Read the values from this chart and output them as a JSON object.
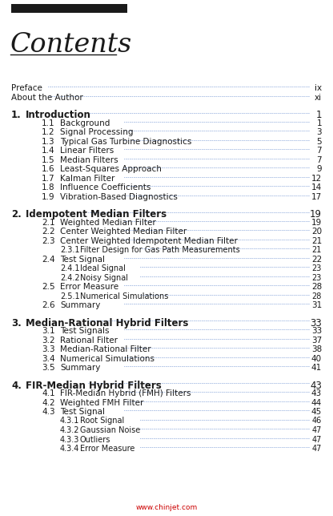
{
  "title": "Contents",
  "background_color": "#ffffff",
  "entries": [
    {
      "level": 0,
      "num": "Preface",
      "title": "",
      "page": "ix"
    },
    {
      "level": 0,
      "num": "About the Author",
      "title": "",
      "page": "xi"
    },
    {
      "level": -1,
      "num": "",
      "title": "",
      "page": ""
    },
    {
      "level": 1,
      "num": "1.",
      "title": "Introduction",
      "page": "1"
    },
    {
      "level": 2,
      "num": "1.1",
      "title": "Background",
      "page": "1"
    },
    {
      "level": 2,
      "num": "1.2",
      "title": "Signal Processing",
      "page": "3"
    },
    {
      "level": 2,
      "num": "1.3",
      "title": "Typical Gas Turbine Diagnostics",
      "page": "5"
    },
    {
      "level": 2,
      "num": "1.4",
      "title": "Linear Filters",
      "page": "7"
    },
    {
      "level": 2,
      "num": "1.5",
      "title": "Median Filters",
      "page": "7"
    },
    {
      "level": 2,
      "num": "1.6",
      "title": "Least-Squares Approach",
      "page": "9"
    },
    {
      "level": 2,
      "num": "1.7",
      "title": "Kalman Filter",
      "page": "12"
    },
    {
      "level": 2,
      "num": "1.8",
      "title": "Influence Coefficients",
      "page": "14"
    },
    {
      "level": 2,
      "num": "1.9",
      "title": "Vibration-Based Diagnostics",
      "page": "17"
    },
    {
      "level": -1,
      "num": "",
      "title": "",
      "page": ""
    },
    {
      "level": 1,
      "num": "2.",
      "title": "Idempotent Median Filters",
      "page": "19"
    },
    {
      "level": 2,
      "num": "2.1",
      "title": "Weighted Median Filter",
      "page": "19"
    },
    {
      "level": 2,
      "num": "2.2",
      "title": "Center Weighted Median Filter",
      "page": "20"
    },
    {
      "level": 2,
      "num": "2.3",
      "title": "Center Weighted Idempotent Median Filter",
      "page": "21"
    },
    {
      "level": 3,
      "num": "2.3.1",
      "title": "Filter Design for Gas Path Measurements",
      "page": "21"
    },
    {
      "level": 2,
      "num": "2.4",
      "title": "Test Signal",
      "page": "22"
    },
    {
      "level": 3,
      "num": "2.4.1",
      "title": "Ideal Signal",
      "page": "23"
    },
    {
      "level": 3,
      "num": "2.4.2",
      "title": "Noisy Signal",
      "page": "23"
    },
    {
      "level": 2,
      "num": "2.5",
      "title": "Error Measure",
      "page": "28"
    },
    {
      "level": 3,
      "num": "2.5.1",
      "title": "Numerical Simulations",
      "page": "28"
    },
    {
      "level": 2,
      "num": "2.6",
      "title": "Summary",
      "page": "31"
    },
    {
      "level": -1,
      "num": "",
      "title": "",
      "page": ""
    },
    {
      "level": 1,
      "num": "3.",
      "title": "Median-Rational Hybrid Filters",
      "page": "33"
    },
    {
      "level": 2,
      "num": "3.1",
      "title": "Test Signals",
      "page": "33"
    },
    {
      "level": 2,
      "num": "3.2",
      "title": "Rational Filter",
      "page": "37"
    },
    {
      "level": 2,
      "num": "3.3",
      "title": "Median-Rational Filter",
      "page": "38"
    },
    {
      "level": 2,
      "num": "3.4",
      "title": "Numerical Simulations",
      "page": "40"
    },
    {
      "level": 2,
      "num": "3.5",
      "title": "Summary",
      "page": "41"
    },
    {
      "level": -1,
      "num": "",
      "title": "",
      "page": ""
    },
    {
      "level": 1,
      "num": "4.",
      "title": "FIR-Median Hybrid Filters",
      "page": "43"
    },
    {
      "level": 2,
      "num": "4.1",
      "title": "FIR-Median Hybrid (FMH) Filters",
      "page": "43"
    },
    {
      "level": 2,
      "num": "4.2",
      "title": "Weighted FMH Filter",
      "page": "44"
    },
    {
      "level": 2,
      "num": "4.3",
      "title": "Test Signal",
      "page": "45"
    },
    {
      "level": 3,
      "num": "4.3.1",
      "title": "Root Signal",
      "page": "46"
    },
    {
      "level": 3,
      "num": "4.3.2",
      "title": "Gaussian Noise",
      "page": "47"
    },
    {
      "level": 3,
      "num": "4.3.3",
      "title": "Outliers",
      "page": "47"
    },
    {
      "level": 3,
      "num": "4.3.4",
      "title": "Error Measure",
      "page": "47"
    }
  ],
  "dot_color": "#4472c4",
  "text_color": "#1a1a1a",
  "header_rect_color": "#1a1a1a",
  "watermark": "www.chinjet.com",
  "watermark_color": "#cc0000"
}
